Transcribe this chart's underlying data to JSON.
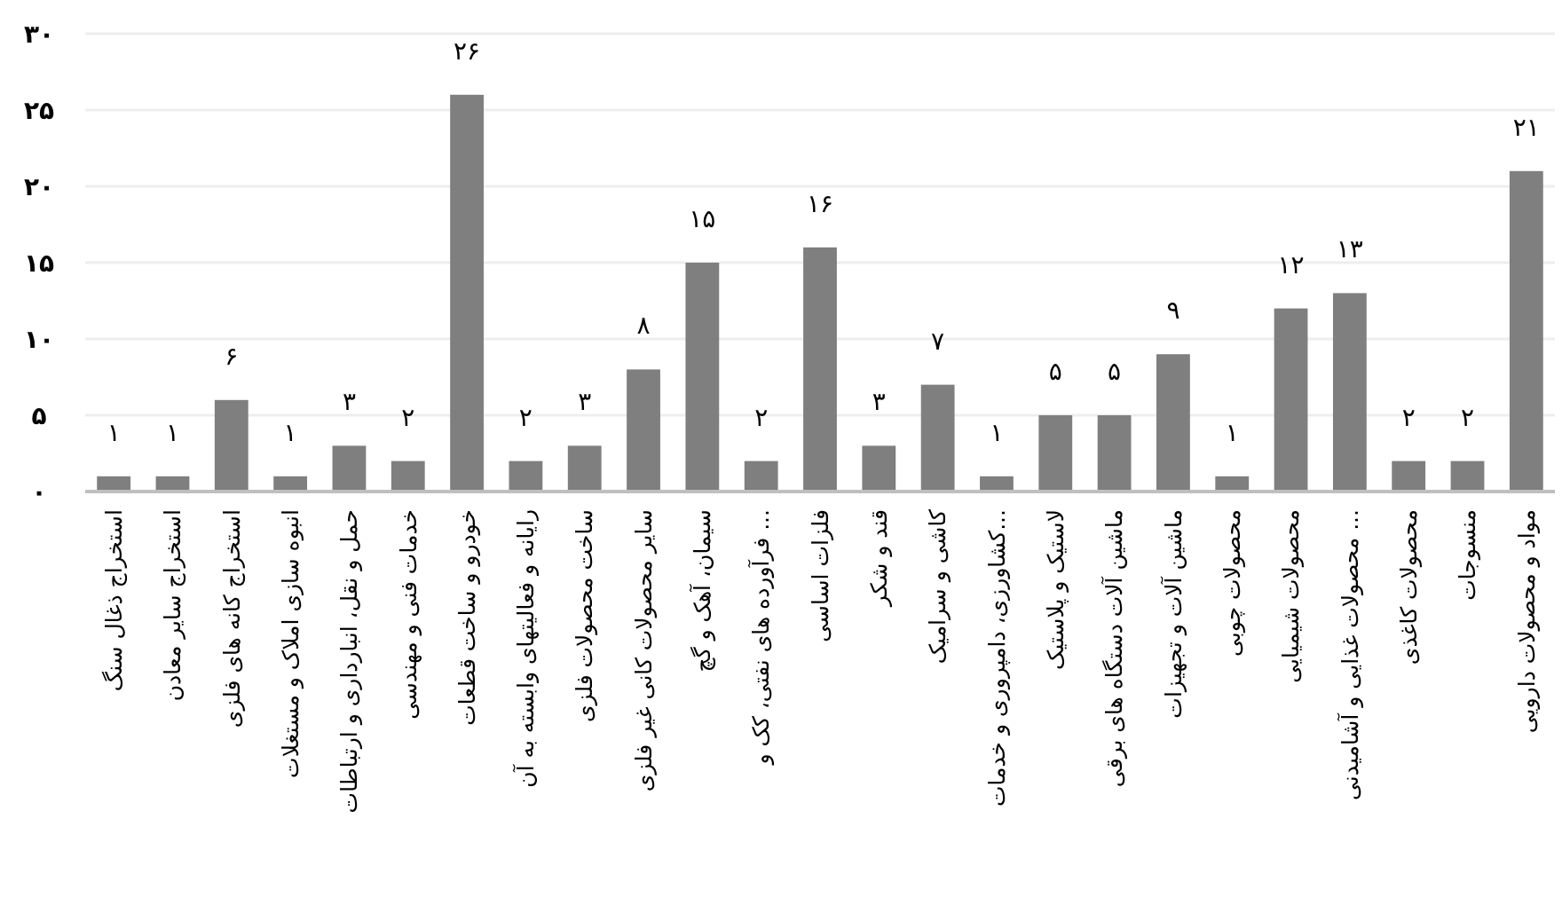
{
  "chart_data": {
    "type": "bar",
    "categories": [
      "استخراج ذغال سنگ",
      "استخراج سایر معادن",
      "استخراج کانه های فلزی",
      "انبوه سازی املاک و مستغلات",
      "حمل و نقل، انبارداری و ارتباطات",
      "خدمات فنی و مهندسی",
      "خودرو و ساخت قطعات",
      "رایانه و فعالیتهای وابسته به آن",
      "ساخت محصولات فلزی",
      "سایر محصولات کانی غیر فلزی",
      "سیمان، آهک و گچ",
      "فرآورده های نفتی، کک و ...",
      "فلزات اساسی",
      "قند و شکر",
      "کاشی و سرامیک",
      "کشاورزی، دامپروری و خدمات...",
      "لاستیک و پلاستیک",
      "ماشین آلات دستگاه های برقی",
      "ماشین آلات و تجهیزات",
      "محصولات چوبی",
      "محصولات شیمیایی",
      "محصولات غذایی و آشامیدنی ...",
      "محصولات کاغذی",
      "منسوجات",
      "مواد و محصولات دارویی"
    ],
    "values": [
      1,
      1,
      6,
      1,
      3,
      2,
      26,
      2,
      3,
      8,
      15,
      2,
      16,
      3,
      7,
      1,
      5,
      5,
      9,
      1,
      12,
      13,
      2,
      2,
      21
    ],
    "value_labels": [
      "۱",
      "۱",
      "۶",
      "۱",
      "۳",
      "۲",
      "۲۶",
      "۲",
      "۳",
      "۸",
      "۱۵",
      "۲",
      "۱۶",
      "۳",
      "۷",
      "۱",
      "۵",
      "۵",
      "۹",
      "۱",
      "۱۲",
      "۱۳",
      "۲",
      "۲",
      "۲۱"
    ],
    "color": "#7f7f7f",
    "ylim": [
      0,
      30
    ],
    "yticks": [
      {
        "value": 0,
        "label": "۰"
      },
      {
        "value": 5,
        "label": "۵"
      },
      {
        "value": 10,
        "label": "۱۰"
      },
      {
        "value": 15,
        "label": "۱۵"
      },
      {
        "value": 20,
        "label": "۲۰"
      },
      {
        "value": 25,
        "label": "۲۵"
      },
      {
        "value": 30,
        "label": "۳۰"
      }
    ],
    "grid": "y"
  }
}
